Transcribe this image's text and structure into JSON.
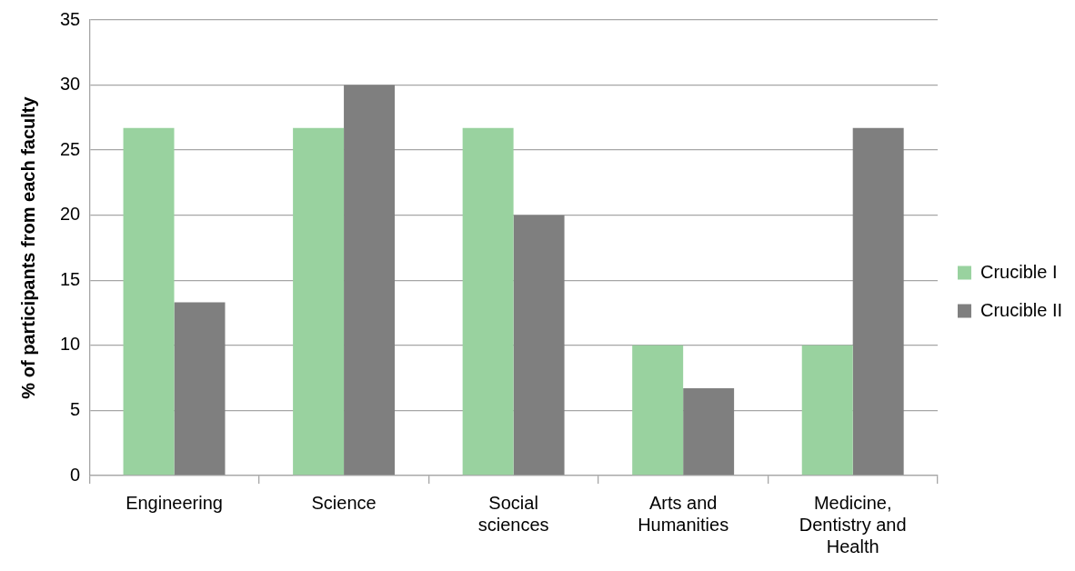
{
  "chart_data": {
    "type": "bar",
    "ylabel": "% of participants from each faculty",
    "categories": [
      "Engineering",
      "Science",
      "Social sciences",
      "Arts and Humanities",
      "Medicine, Dentistry and Health"
    ],
    "series": [
      {
        "name": "Crucible I",
        "color": "#99d29f",
        "values": [
          26.7,
          26.7,
          26.7,
          10,
          10
        ]
      },
      {
        "name": "Crucible II",
        "color": "#7f7f7f",
        "values": [
          13.3,
          30,
          20,
          6.7,
          26.7
        ]
      }
    ],
    "ylim": [
      0,
      35
    ],
    "yticks": [
      0,
      5,
      10,
      15,
      20,
      25,
      30,
      35
    ],
    "grid": "y",
    "legend": "right"
  }
}
